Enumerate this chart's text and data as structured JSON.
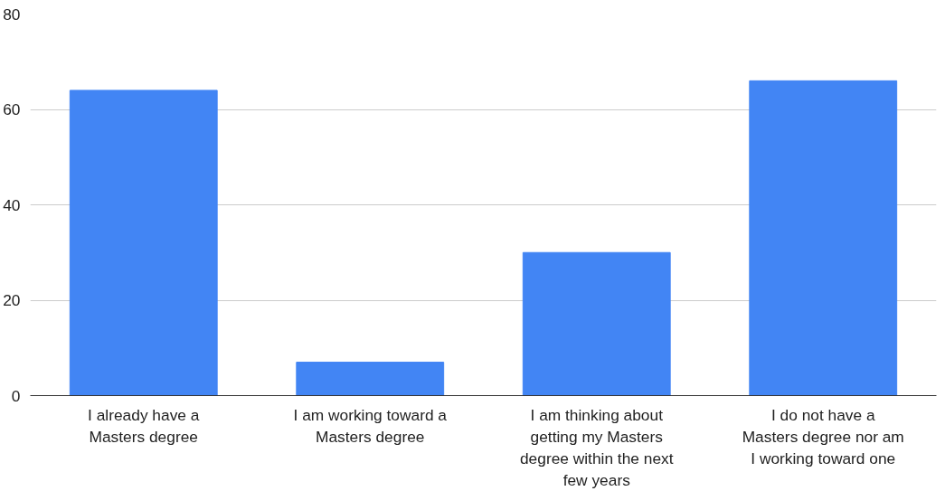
{
  "chart_data": {
    "type": "bar",
    "categories": [
      "I already have a Masters degree",
      "I am working toward a Masters degree",
      "I am thinking about getting my Masters degree within the next few years",
      "I do not have a Masters degree nor am I working toward one"
    ],
    "values": [
      64,
      7,
      30,
      66
    ],
    "color": "#4285f4",
    "ylim": [
      0,
      80
    ],
    "yticks": [
      0,
      20,
      40,
      60,
      80
    ],
    "grid": "y"
  }
}
